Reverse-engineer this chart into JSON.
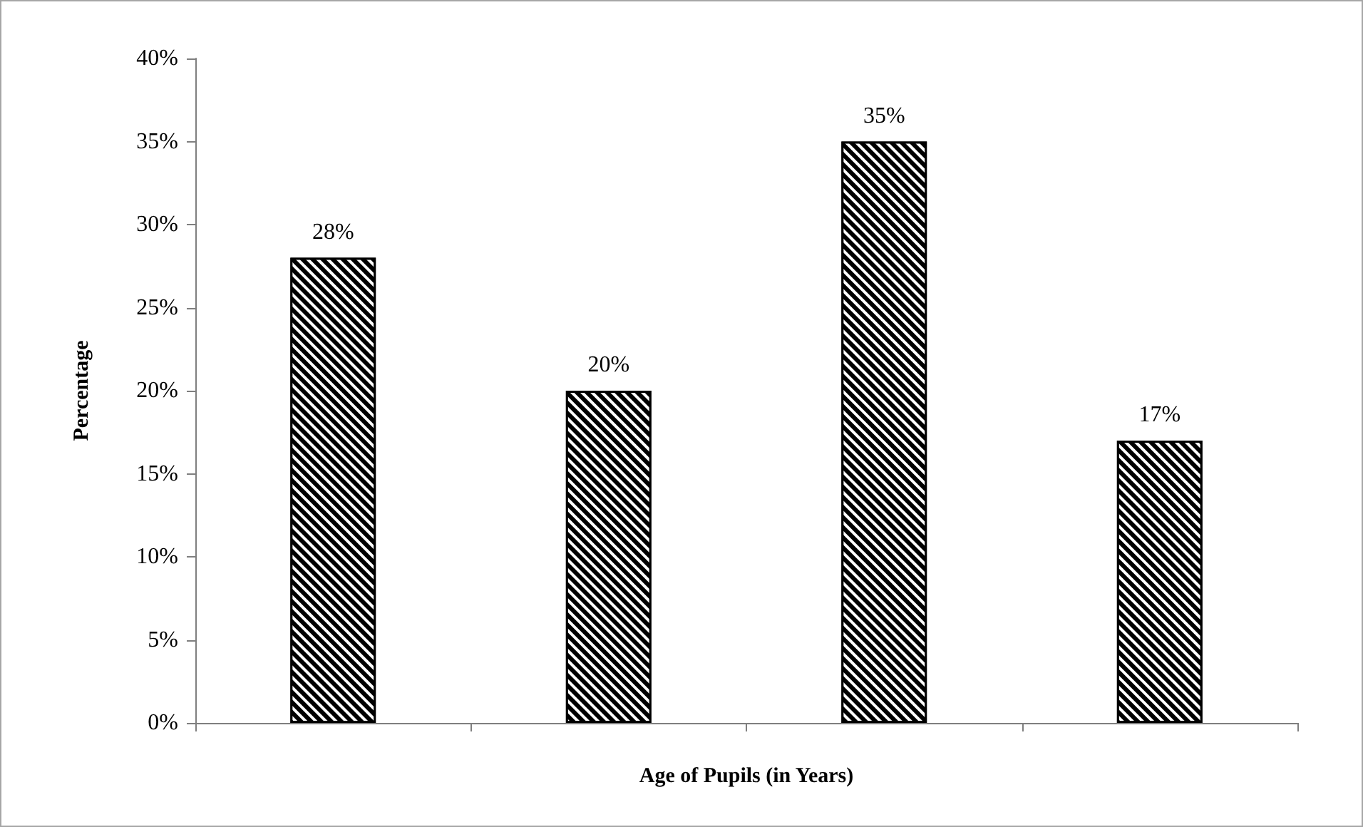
{
  "chart_data": {
    "type": "bar",
    "xlabel": "Age of Pupils (in Years)",
    "ylabel": "Percentage",
    "categories": [
      null,
      null,
      null,
      null
    ],
    "values": [
      28,
      20,
      35,
      17
    ],
    "color": "#000000",
    "value_labels": [
      "28%",
      "20%",
      "35%",
      "17%"
    ],
    "ylim": [
      0,
      40
    ],
    "yticks": [
      {
        "value": 0,
        "label": "0%"
      },
      {
        "value": 5,
        "label": "5%"
      },
      {
        "value": 10,
        "label": "10%"
      },
      {
        "value": 15,
        "label": "15%"
      },
      {
        "value": 20,
        "label": "20%"
      },
      {
        "value": 25,
        "label": "25%"
      },
      {
        "value": 30,
        "label": "30%"
      },
      {
        "value": 35,
        "label": "35%"
      },
      {
        "value": 40,
        "label": "40%"
      }
    ],
    "grid": false
  }
}
